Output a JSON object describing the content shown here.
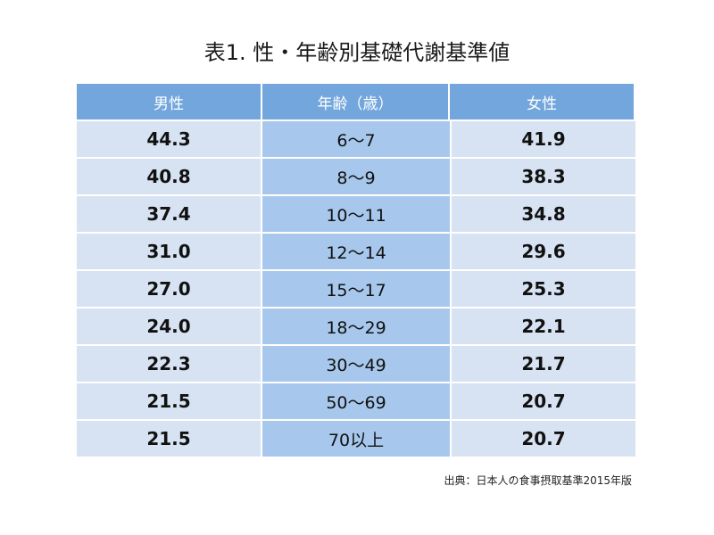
{
  "title": "表1. 性・年齢別基礎代謝基準値",
  "source": "出典：日本人の食事摂取基準2015年版",
  "chart_data": {
    "type": "table",
    "title": "表1. 性・年齢別基礎代謝基準値",
    "columns": [
      "男性",
      "年齢（歳）",
      "女性"
    ],
    "rows": [
      {
        "male": "44.3",
        "age": "6～7",
        "female": "41.9"
      },
      {
        "male": "40.8",
        "age": "8～9",
        "female": "38.3"
      },
      {
        "male": "37.4",
        "age": "10～11",
        "female": "34.8"
      },
      {
        "male": "31.0",
        "age": "12～14",
        "female": "29.6"
      },
      {
        "male": "27.0",
        "age": "15～17",
        "female": "25.3"
      },
      {
        "male": "24.0",
        "age": "18～29",
        "female": "22.1"
      },
      {
        "male": "22.3",
        "age": "30～49",
        "female": "21.7"
      },
      {
        "male": "21.5",
        "age": "50～69",
        "female": "20.7"
      },
      {
        "male": "21.5",
        "age": "70以上",
        "female": "20.7"
      }
    ],
    "colors": {
      "header": "#72a6dc",
      "side_cells": "#d7e3f2",
      "age_cells": "#a7c8ec"
    }
  }
}
